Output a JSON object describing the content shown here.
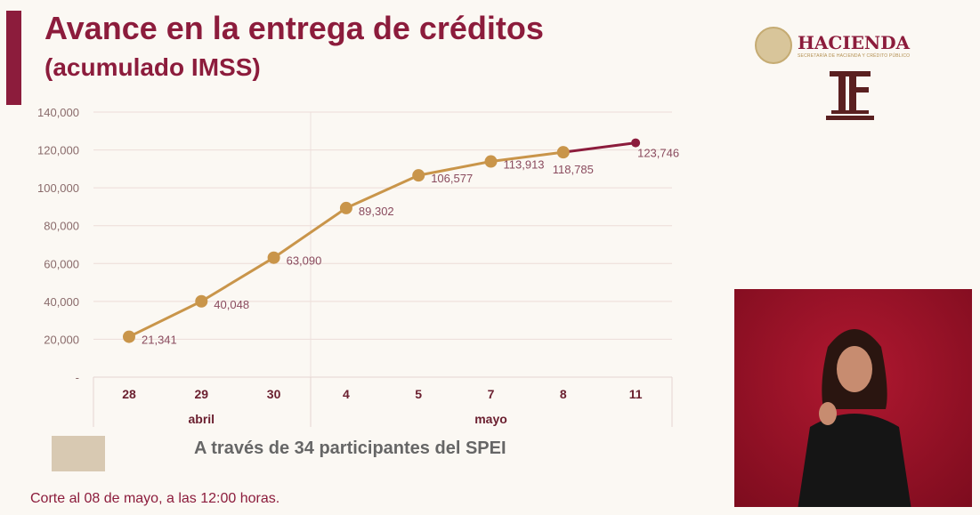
{
  "title": "Avance en la entrega de créditos",
  "subtitle": "(acumulado IMSS)",
  "logo": {
    "name": "HACIENDA",
    "tagline": "SECRETARÍA DE HACIENDA Y CRÉDITO PÚBLICO",
    "icon": "tf-logo"
  },
  "caption": "A través de 34 participantes del SPEI",
  "footer": "Corte al 08 de mayo, a las 12:00 horas.",
  "colors": {
    "accent": "#8c1c3c",
    "line": "#c9954a"
  },
  "chart_data": {
    "type": "line",
    "categories": [
      "28",
      "29",
      "30",
      "4",
      "5",
      "7",
      "8",
      "11"
    ],
    "groups": [
      {
        "label": "abril",
        "categories": [
          "28",
          "29",
          "30"
        ]
      },
      {
        "label": "mayo",
        "categories": [
          "4",
          "5",
          "7",
          "8",
          "11"
        ]
      }
    ],
    "values": [
      21341,
      40048,
      63090,
      89302,
      106577,
      113913,
      118785,
      123746
    ],
    "data_labels": [
      "21,341",
      "40,048",
      "63,090",
      "89,302",
      "106,577",
      "113,913",
      "118,785",
      "123,746"
    ],
    "yticks": [
      "-",
      "20,000",
      "40,000",
      "60,000",
      "80,000",
      "100,000",
      "120,000",
      "140,000"
    ],
    "ylim": [
      0,
      140000
    ],
    "grid": true,
    "note": "last segment highlighted in accent color"
  }
}
